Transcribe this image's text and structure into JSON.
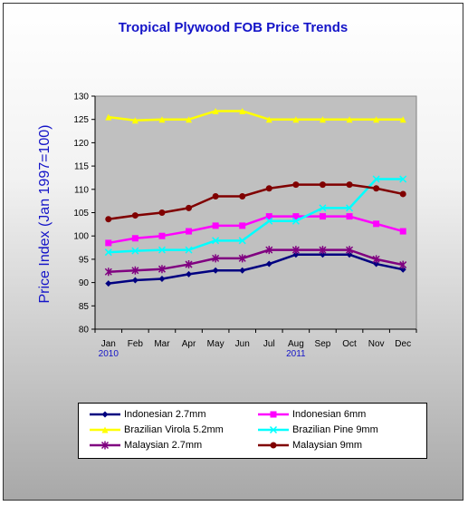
{
  "chart_data": {
    "type": "line",
    "title": "Tropical Plywood FOB Price Trends",
    "ylabel": "Price Index (Jan 1997=100)",
    "xlabel": "",
    "ylim": [
      80,
      130
    ],
    "yticks": [
      80,
      85,
      90,
      95,
      100,
      105,
      110,
      115,
      120,
      125,
      130
    ],
    "categories": [
      "Jan",
      "Feb",
      "Mar",
      "Apr",
      "May",
      "Jun",
      "Jul",
      "Aug",
      "Sep",
      "Oct",
      "Nov",
      "Dec"
    ],
    "year_labels": [
      {
        "category": "Jan",
        "text": "2010"
      },
      {
        "category": "Aug",
        "text": "2011"
      }
    ],
    "grid": false,
    "legend_position": "bottom",
    "series": [
      {
        "name": "Indonesian 2.7mm",
        "color": "#000080",
        "marker": "diamond",
        "values": [
          89.8,
          90.5,
          90.8,
          91.8,
          92.6,
          92.6,
          94.0,
          96.0,
          96.0,
          96.0,
          94.0,
          92.8
        ]
      },
      {
        "name": "Indonesian 6mm",
        "color": "#ff00ff",
        "marker": "square",
        "values": [
          98.5,
          99.5,
          100.0,
          101.0,
          102.2,
          102.2,
          104.2,
          104.2,
          104.2,
          104.2,
          102.6,
          101.0
        ]
      },
      {
        "name": "Brazilian Virola 5.2mm",
        "color": "#ffff00",
        "marker": "triangle",
        "values": [
          125.5,
          124.8,
          125.0,
          125.0,
          126.8,
          126.8,
          125.0,
          125.0,
          125.0,
          125.0,
          125.0,
          125.0
        ]
      },
      {
        "name": "Brazilian Pine 9mm",
        "color": "#00ffff",
        "marker": "x",
        "values": [
          96.5,
          96.8,
          97.0,
          97.0,
          99.0,
          99.0,
          103.2,
          103.2,
          106.0,
          106.0,
          112.2,
          112.2
        ]
      },
      {
        "name": "Malaysian 2.7mm",
        "color": "#800080",
        "marker": "star",
        "values": [
          92.3,
          92.6,
          92.9,
          93.9,
          95.2,
          95.2,
          97.0,
          97.0,
          97.0,
          97.0,
          95.0,
          93.8
        ]
      },
      {
        "name": "Malaysian 9mm",
        "color": "#800000",
        "marker": "circle",
        "values": [
          103.6,
          104.4,
          105.0,
          106.0,
          108.5,
          108.5,
          110.2,
          111.0,
          111.0,
          111.0,
          110.2,
          109.0
        ]
      }
    ]
  }
}
